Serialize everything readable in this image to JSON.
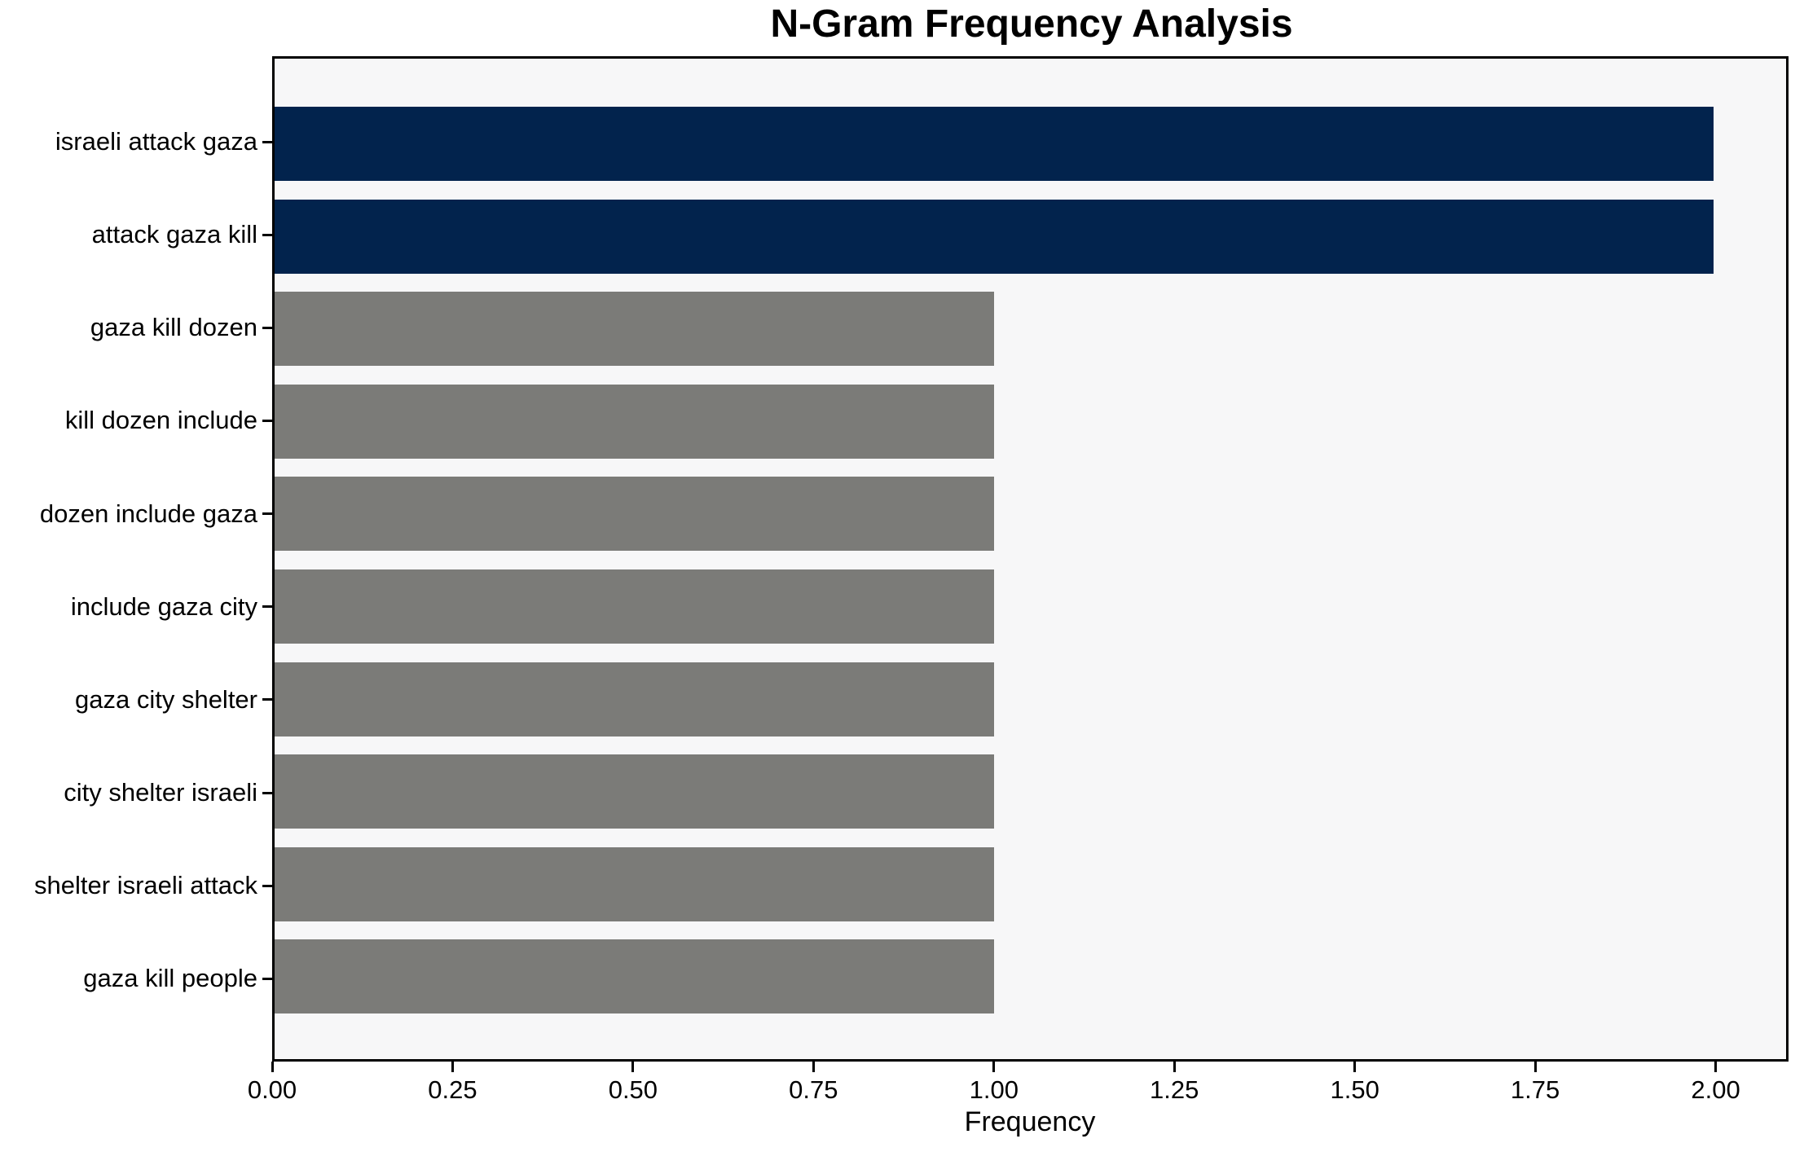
{
  "figure": {
    "background": "#ffffff"
  },
  "colors": {
    "highlight_bar": "#02234d",
    "default_bar": "#7b7b78",
    "plot_background": "#f7f7f8",
    "spine": "#000000",
    "text": "#000000"
  },
  "chart_data": {
    "type": "bar",
    "orientation": "horizontal",
    "title": "N-Gram Frequency Analysis",
    "xlabel": "Frequency",
    "ylabel": "",
    "categories": [
      "israeli attack gaza",
      "attack gaza kill",
      "gaza kill dozen",
      "kill dozen include",
      "dozen include gaza",
      "include gaza city",
      "gaza city shelter",
      "city shelter israeli",
      "shelter israeli attack",
      "gaza kill people"
    ],
    "values": [
      2,
      2,
      1,
      1,
      1,
      1,
      1,
      1,
      1,
      1
    ],
    "bar_colors": [
      "#02234d",
      "#02234d",
      "#7b7b78",
      "#7b7b78",
      "#7b7b78",
      "#7b7b78",
      "#7b7b78",
      "#7b7b78",
      "#7b7b78",
      "#7b7b78"
    ],
    "xlim": [
      0,
      2.101
    ],
    "xticks": [
      0,
      0.25,
      0.5,
      0.75,
      1.0,
      1.25,
      1.5,
      1.75,
      2.0
    ],
    "xtick_labels": [
      "0.00",
      "0.25",
      "0.50",
      "0.75",
      "1.00",
      "1.25",
      "1.50",
      "1.75",
      "2.00"
    ],
    "grid": false,
    "legend": null
  }
}
